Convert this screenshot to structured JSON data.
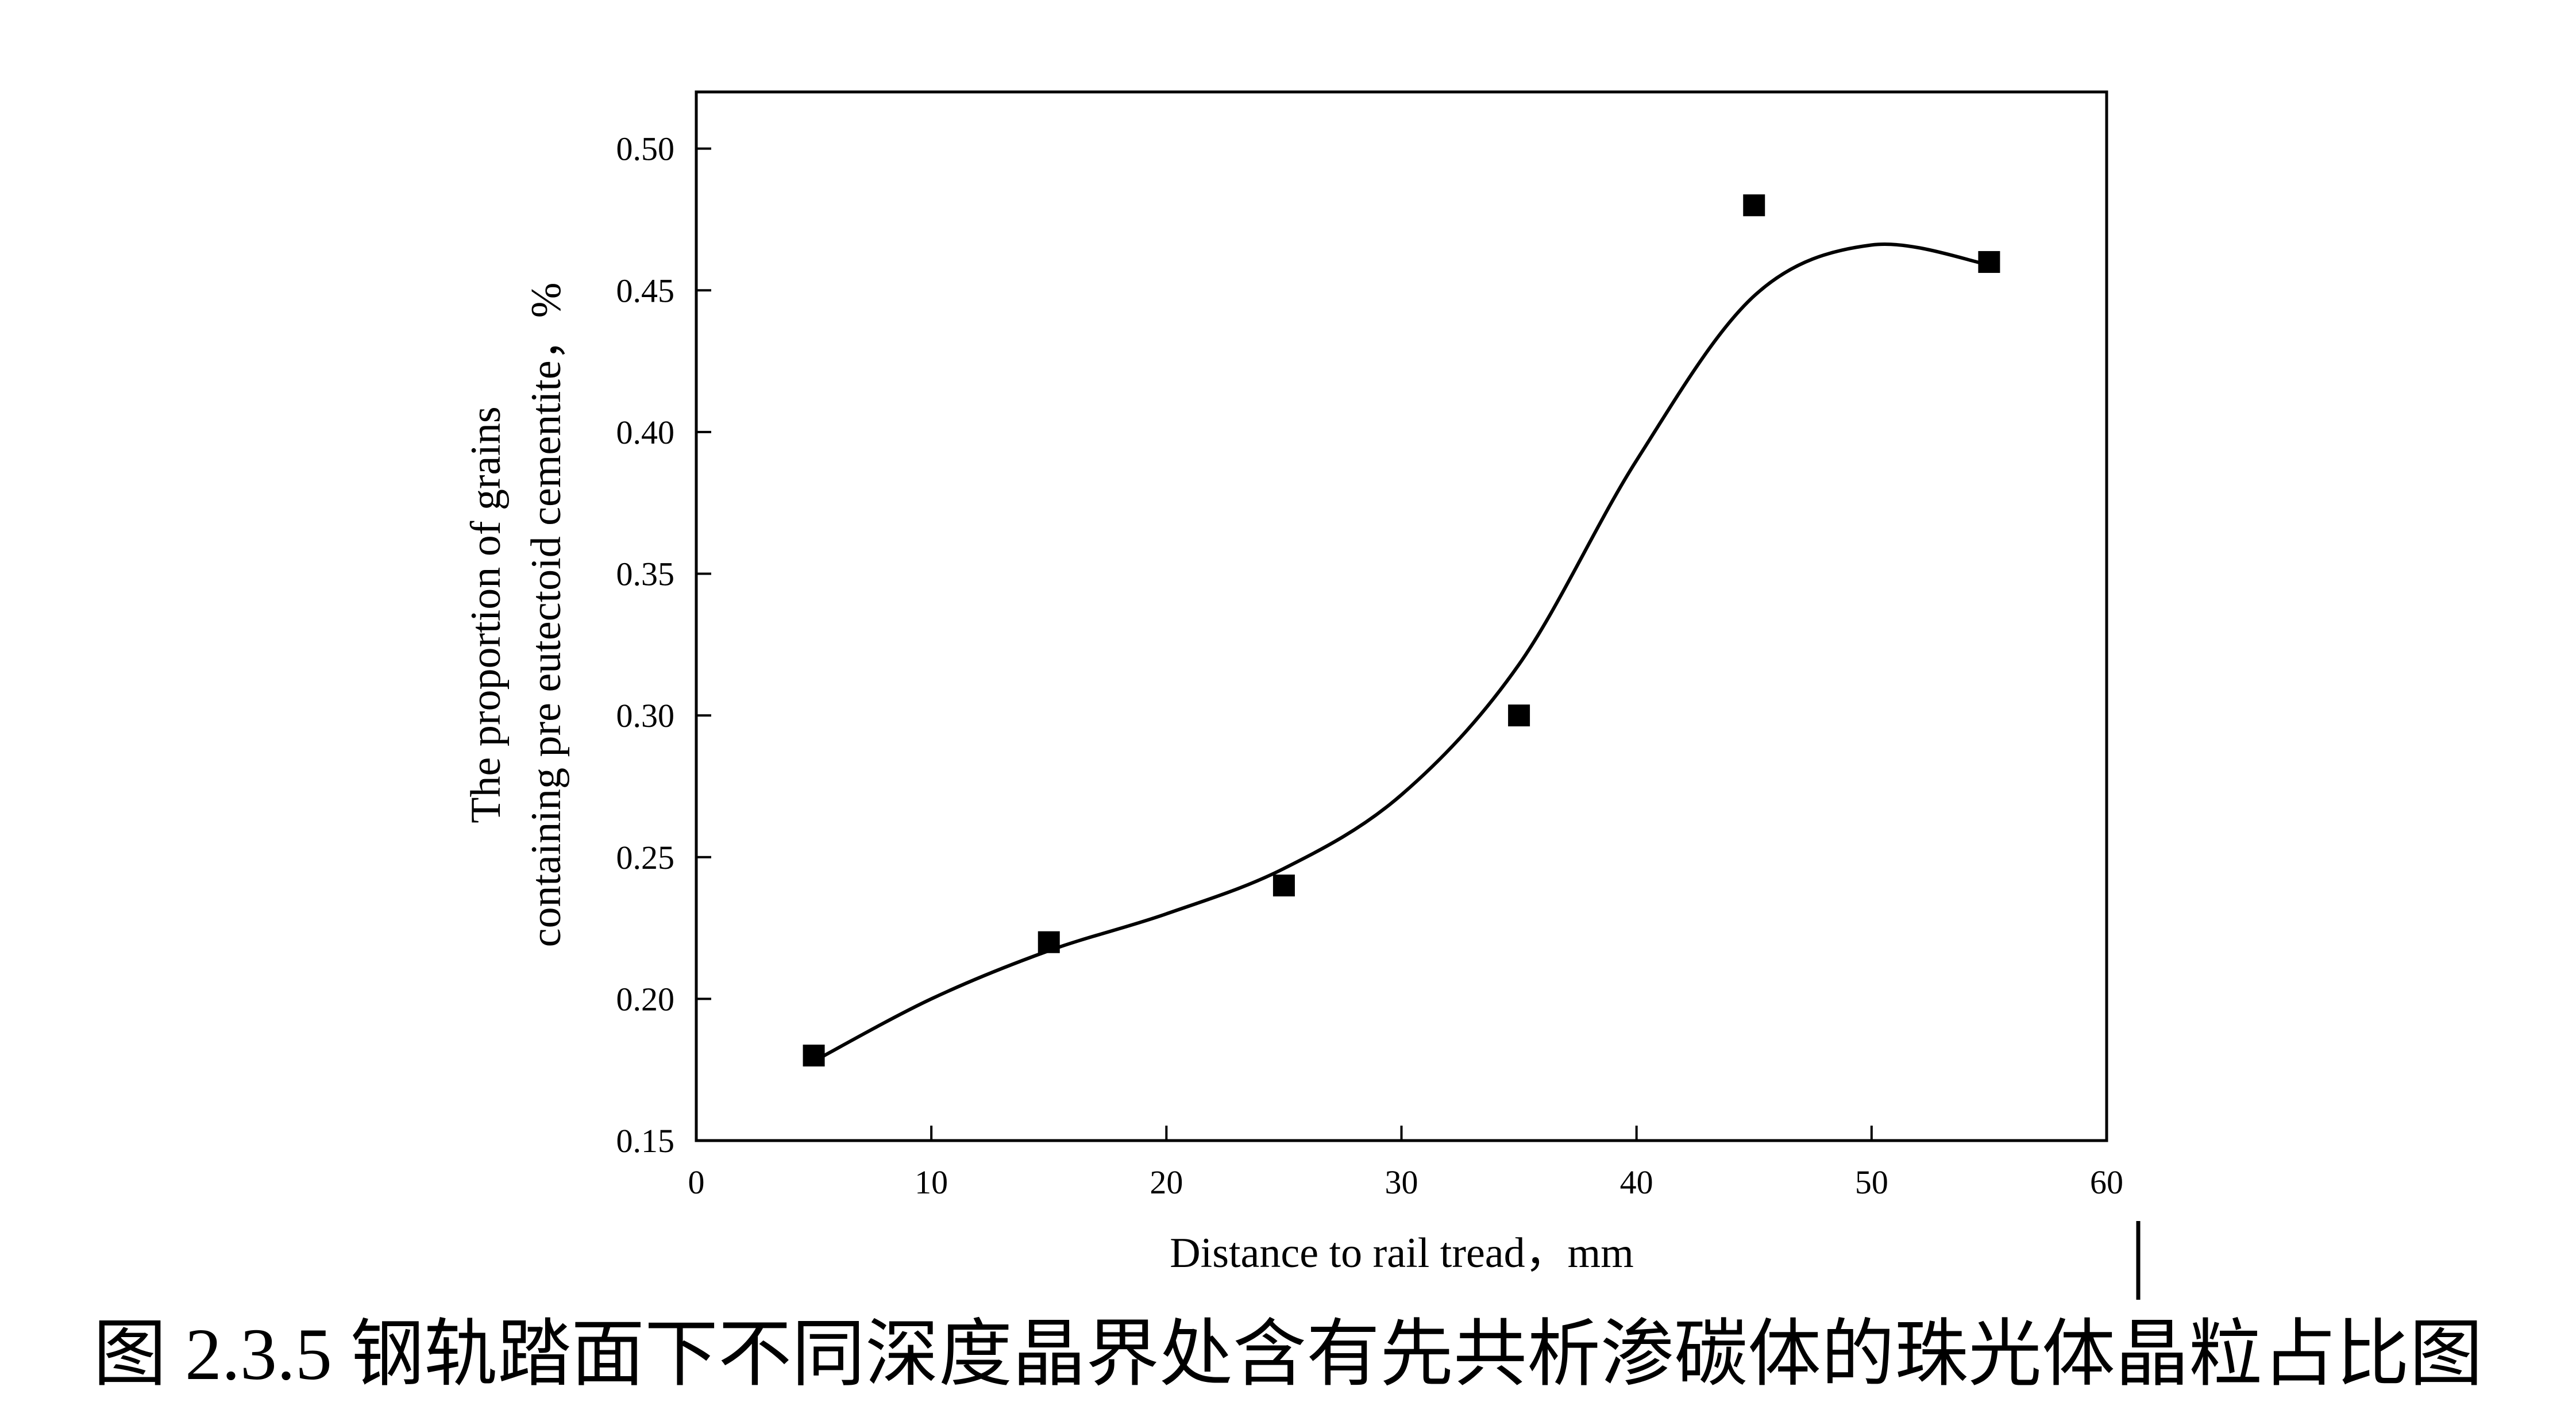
{
  "chart_data": {
    "type": "scatter",
    "title": "",
    "xlabel": "Distance to rail tread，mm",
    "ylabel_lines": [
      "The proportion of grains",
      "containing pre eutectoid cementite，%"
    ],
    "xlim": [
      0,
      60
    ],
    "ylim": [
      0.15,
      0.52
    ],
    "x_ticks": [
      0,
      10,
      20,
      30,
      40,
      50,
      60
    ],
    "y_ticks": [
      0.15,
      0.2,
      0.25,
      0.3,
      0.35,
      0.4,
      0.45,
      0.5
    ],
    "x_tick_labels": [
      "0",
      "10",
      "20",
      "30",
      "40",
      "50",
      "60"
    ],
    "y_tick_labels": [
      "0.15",
      "0.20",
      "0.25",
      "0.30",
      "0.35",
      "0.40",
      "0.45",
      "0.50"
    ],
    "grid": false,
    "series": [
      {
        "kind": "points",
        "marker": "square",
        "color": "#000000",
        "x": [
          5,
          15,
          25,
          35,
          45,
          55
        ],
        "y": [
          0.18,
          0.22,
          0.24,
          0.3,
          0.48,
          0.46
        ]
      },
      {
        "kind": "fit-curve",
        "color": "#000000",
        "x": [
          5,
          10,
          15,
          20,
          25,
          30,
          35,
          40,
          45,
          50,
          55
        ],
        "y": [
          0.178,
          0.2,
          0.217,
          0.23,
          0.246,
          0.272,
          0.318,
          0.39,
          0.448,
          0.466,
          0.459
        ]
      }
    ]
  },
  "caption": "图 2.3.5 钢轨踏面下不同深度晶界处含有先共析渗碳体的珠光体晶粒占比图"
}
